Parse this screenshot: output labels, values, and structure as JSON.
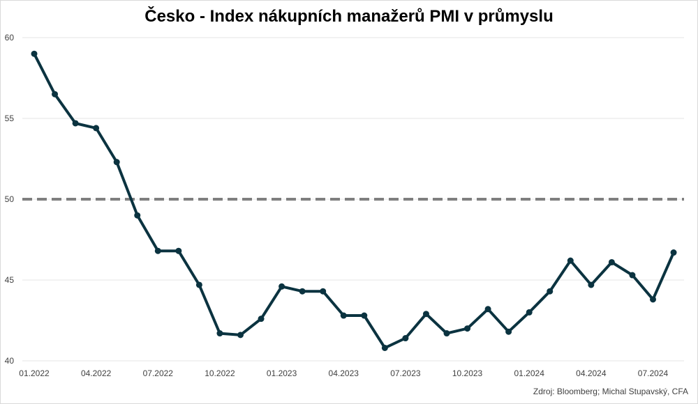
{
  "chart_data": {
    "type": "line",
    "title": "Česko - Index nákupních manažerů PMI v průmyslu",
    "source": "Zdroj: Bloomberg; Michal Stupavský, CFA",
    "ylim": [
      40,
      60
    ],
    "yticks": [
      "40",
      "45",
      "50",
      "55",
      "60"
    ],
    "grid": true,
    "reference_line": {
      "value": 50,
      "style": "dashed",
      "color": "#7f7f7f"
    },
    "line_color": "#0b3340",
    "x": [
      "01.2022",
      "02.2022",
      "03.2022",
      "04.2022",
      "05.2022",
      "06.2022",
      "07.2022",
      "08.2022",
      "09.2022",
      "10.2022",
      "11.2022",
      "12.2022",
      "01.2023",
      "02.2023",
      "03.2023",
      "04.2023",
      "05.2023",
      "06.2023",
      "07.2023",
      "08.2023",
      "09.2023",
      "10.2023",
      "11.2023",
      "12.2023",
      "01.2024",
      "02.2024",
      "03.2024",
      "04.2024",
      "05.2024",
      "06.2024",
      "07.2024",
      "08.2024"
    ],
    "xtick_labels": [
      "01.2022",
      "04.2022",
      "07.2022",
      "10.2022",
      "01.2023",
      "04.2023",
      "07.2023",
      "10.2023",
      "01.2024",
      "04.2024",
      "07.2024"
    ],
    "series": [
      {
        "values": [
          59.0,
          56.5,
          54.7,
          54.4,
          52.3,
          49.0,
          46.8,
          46.8,
          44.7,
          41.7,
          41.6,
          42.6,
          44.6,
          44.3,
          44.3,
          42.8,
          42.8,
          40.8,
          41.4,
          42.9,
          41.7,
          42.0,
          43.2,
          41.8,
          43.0,
          44.3,
          46.2,
          44.7,
          46.1,
          45.3,
          43.8,
          46.7
        ]
      }
    ]
  }
}
